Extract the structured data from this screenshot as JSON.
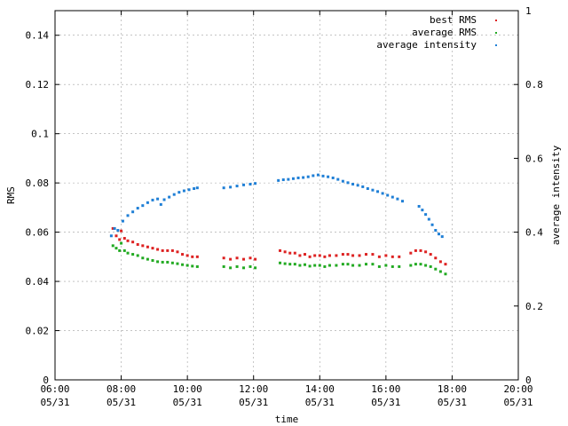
{
  "chart_data": {
    "type": "scatter",
    "title": "",
    "xlabel": "time",
    "ylabel": "RMS",
    "y2label": "average intensity",
    "xlim_hours": [
      6,
      20
    ],
    "ylim": [
      0,
      0.15
    ],
    "y2lim": [
      0,
      1
    ],
    "grid": true,
    "legend_position": "top-right",
    "x_ticks": [
      {
        "value": 6,
        "time": "06:00",
        "date": "05/31"
      },
      {
        "value": 8,
        "time": "08:00",
        "date": "05/31"
      },
      {
        "value": 10,
        "time": "10:00",
        "date": "05/31"
      },
      {
        "value": 12,
        "time": "12:00",
        "date": "05/31"
      },
      {
        "value": 14,
        "time": "14:00",
        "date": "05/31"
      },
      {
        "value": 16,
        "time": "16:00",
        "date": "05/31"
      },
      {
        "value": 18,
        "time": "18:00",
        "date": "05/31"
      },
      {
        "value": 20,
        "time": "20:00",
        "date": "05/31"
      }
    ],
    "y_ticks": [
      {
        "value": 0,
        "label": "0"
      },
      {
        "value": 0.02,
        "label": "0.02"
      },
      {
        "value": 0.04,
        "label": "0.04"
      },
      {
        "value": 0.06,
        "label": "0.06"
      },
      {
        "value": 0.08,
        "label": "0.08"
      },
      {
        "value": 0.1,
        "label": "0.1"
      },
      {
        "value": 0.12,
        "label": "0.12"
      },
      {
        "value": 0.14,
        "label": "0.14"
      }
    ],
    "y2_ticks": [
      {
        "value": 0,
        "label": "0"
      },
      {
        "value": 0.2,
        "label": "0.2"
      },
      {
        "value": 0.4,
        "label": "0.4"
      },
      {
        "value": 0.6,
        "label": "0.6"
      },
      {
        "value": 0.8,
        "label": "0.8"
      },
      {
        "value": 1,
        "label": "1"
      }
    ],
    "series": [
      {
        "name": "best RMS",
        "color": "#dd2222",
        "axis": "y",
        "points": [
          [
            7.75,
            0.0615
          ],
          [
            7.85,
            0.0585
          ],
          [
            7.95,
            0.057
          ],
          [
            8.0,
            0.0605
          ],
          [
            8.1,
            0.0575
          ],
          [
            8.2,
            0.0565
          ],
          [
            8.35,
            0.056
          ],
          [
            8.5,
            0.055
          ],
          [
            8.65,
            0.0545
          ],
          [
            8.8,
            0.054
          ],
          [
            8.95,
            0.0535
          ],
          [
            9.1,
            0.053
          ],
          [
            9.25,
            0.0525
          ],
          [
            9.4,
            0.0525
          ],
          [
            9.55,
            0.0525
          ],
          [
            9.7,
            0.052
          ],
          [
            9.85,
            0.051
          ],
          [
            10.0,
            0.0505
          ],
          [
            10.15,
            0.05
          ],
          [
            10.3,
            0.05
          ],
          [
            11.1,
            0.0495
          ],
          [
            11.3,
            0.049
          ],
          [
            11.5,
            0.0495
          ],
          [
            11.7,
            0.049
          ],
          [
            11.9,
            0.0495
          ],
          [
            12.05,
            0.049
          ],
          [
            12.8,
            0.0525
          ],
          [
            12.95,
            0.052
          ],
          [
            13.1,
            0.0515
          ],
          [
            13.25,
            0.0515
          ],
          [
            13.4,
            0.0505
          ],
          [
            13.55,
            0.051
          ],
          [
            13.7,
            0.05
          ],
          [
            13.85,
            0.0505
          ],
          [
            14.0,
            0.0505
          ],
          [
            14.15,
            0.05
          ],
          [
            14.3,
            0.0505
          ],
          [
            14.5,
            0.0505
          ],
          [
            14.7,
            0.051
          ],
          [
            14.85,
            0.051
          ],
          [
            15.0,
            0.0505
          ],
          [
            15.2,
            0.0505
          ],
          [
            15.4,
            0.051
          ],
          [
            15.6,
            0.051
          ],
          [
            15.8,
            0.05
          ],
          [
            16.0,
            0.0505
          ],
          [
            16.2,
            0.05
          ],
          [
            16.4,
            0.05
          ],
          [
            16.75,
            0.0515
          ],
          [
            16.9,
            0.0525
          ],
          [
            17.05,
            0.0525
          ],
          [
            17.2,
            0.052
          ],
          [
            17.35,
            0.051
          ],
          [
            17.5,
            0.0495
          ],
          [
            17.65,
            0.048
          ],
          [
            17.8,
            0.047
          ]
        ]
      },
      {
        "name": "average RMS",
        "color": "#22aa22",
        "axis": "y",
        "points": [
          [
            7.75,
            0.0545
          ],
          [
            7.85,
            0.0535
          ],
          [
            7.95,
            0.0525
          ],
          [
            8.0,
            0.0555
          ],
          [
            8.1,
            0.0525
          ],
          [
            8.2,
            0.0515
          ],
          [
            8.35,
            0.051
          ],
          [
            8.5,
            0.0505
          ],
          [
            8.65,
            0.0495
          ],
          [
            8.8,
            0.049
          ],
          [
            8.95,
            0.0485
          ],
          [
            9.1,
            0.048
          ],
          [
            9.25,
            0.0478
          ],
          [
            9.4,
            0.0478
          ],
          [
            9.55,
            0.0475
          ],
          [
            9.7,
            0.0472
          ],
          [
            9.85,
            0.0468
          ],
          [
            10.0,
            0.0465
          ],
          [
            10.15,
            0.0462
          ],
          [
            10.3,
            0.046
          ],
          [
            11.1,
            0.046
          ],
          [
            11.3,
            0.0455
          ],
          [
            11.5,
            0.046
          ],
          [
            11.7,
            0.0455
          ],
          [
            11.9,
            0.046
          ],
          [
            12.05,
            0.0455
          ],
          [
            12.8,
            0.0475
          ],
          [
            12.95,
            0.0472
          ],
          [
            13.1,
            0.047
          ],
          [
            13.25,
            0.047
          ],
          [
            13.4,
            0.0465
          ],
          [
            13.55,
            0.0468
          ],
          [
            13.7,
            0.0462
          ],
          [
            13.85,
            0.0465
          ],
          [
            14.0,
            0.0465
          ],
          [
            14.15,
            0.046
          ],
          [
            14.3,
            0.0465
          ],
          [
            14.5,
            0.0465
          ],
          [
            14.7,
            0.047
          ],
          [
            14.85,
            0.047
          ],
          [
            15.0,
            0.0465
          ],
          [
            15.2,
            0.0465
          ],
          [
            15.4,
            0.047
          ],
          [
            15.6,
            0.047
          ],
          [
            15.8,
            0.046
          ],
          [
            16.0,
            0.0465
          ],
          [
            16.2,
            0.046
          ],
          [
            16.4,
            0.046
          ],
          [
            16.75,
            0.0465
          ],
          [
            16.9,
            0.047
          ],
          [
            17.05,
            0.047
          ],
          [
            17.2,
            0.0465
          ],
          [
            17.35,
            0.046
          ],
          [
            17.5,
            0.045
          ],
          [
            17.65,
            0.044
          ],
          [
            17.8,
            0.043
          ]
        ]
      },
      {
        "name": "average intensity",
        "color": "#1f7fd6",
        "axis": "y2",
        "points": [
          [
            7.7,
            0.39
          ],
          [
            7.8,
            0.41
          ],
          [
            7.9,
            0.405
          ],
          [
            8.05,
            0.43
          ],
          [
            8.2,
            0.445
          ],
          [
            8.35,
            0.455
          ],
          [
            8.5,
            0.465
          ],
          [
            8.65,
            0.472
          ],
          [
            8.8,
            0.48
          ],
          [
            8.95,
            0.487
          ],
          [
            9.1,
            0.49
          ],
          [
            9.2,
            0.475
          ],
          [
            9.3,
            0.488
          ],
          [
            9.45,
            0.495
          ],
          [
            9.6,
            0.502
          ],
          [
            9.75,
            0.508
          ],
          [
            9.9,
            0.512
          ],
          [
            10.05,
            0.515
          ],
          [
            10.2,
            0.518
          ],
          [
            10.3,
            0.52
          ],
          [
            11.1,
            0.52
          ],
          [
            11.3,
            0.522
          ],
          [
            11.5,
            0.525
          ],
          [
            11.7,
            0.528
          ],
          [
            11.9,
            0.53
          ],
          [
            12.05,
            0.532
          ],
          [
            12.75,
            0.54
          ],
          [
            12.9,
            0.542
          ],
          [
            13.05,
            0.543
          ],
          [
            13.2,
            0.545
          ],
          [
            13.35,
            0.547
          ],
          [
            13.5,
            0.548
          ],
          [
            13.65,
            0.55
          ],
          [
            13.8,
            0.553
          ],
          [
            13.95,
            0.555
          ],
          [
            14.1,
            0.552
          ],
          [
            14.25,
            0.55
          ],
          [
            14.4,
            0.547
          ],
          [
            14.55,
            0.543
          ],
          [
            14.7,
            0.538
          ],
          [
            14.85,
            0.534
          ],
          [
            15.0,
            0.53
          ],
          [
            15.15,
            0.527
          ],
          [
            15.3,
            0.523
          ],
          [
            15.45,
            0.518
          ],
          [
            15.6,
            0.514
          ],
          [
            15.75,
            0.51
          ],
          [
            15.9,
            0.505
          ],
          [
            16.05,
            0.5
          ],
          [
            16.2,
            0.495
          ],
          [
            16.35,
            0.49
          ],
          [
            16.5,
            0.484
          ],
          [
            17.0,
            0.47
          ],
          [
            17.1,
            0.46
          ],
          [
            17.2,
            0.448
          ],
          [
            17.3,
            0.435
          ],
          [
            17.4,
            0.42
          ],
          [
            17.5,
            0.405
          ],
          [
            17.6,
            0.395
          ],
          [
            17.7,
            0.388
          ]
        ]
      }
    ]
  }
}
